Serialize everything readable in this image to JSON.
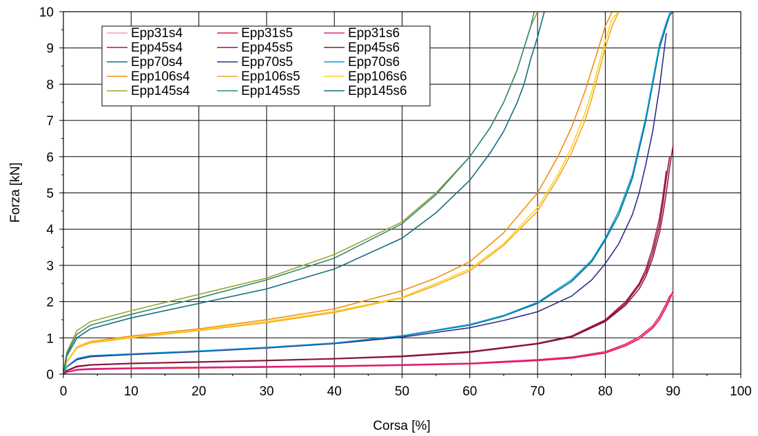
{
  "chart_data": {
    "type": "line",
    "xlabel": "Corsa [%]",
    "ylabel": "Forza [kN]",
    "xlim": [
      0,
      100
    ],
    "ylim": [
      0,
      10
    ],
    "xticks": [
      0,
      10,
      20,
      30,
      40,
      50,
      60,
      70,
      80,
      90,
      100
    ],
    "yticks": [
      0,
      1,
      2,
      3,
      4,
      5,
      6,
      7,
      8,
      9,
      10
    ],
    "x_tick_labels": [
      "0",
      "10",
      "20",
      "30",
      "40",
      "50",
      "60",
      "70",
      "80",
      "90",
      "100"
    ],
    "y_tick_labels": [
      "0",
      "1",
      "2",
      "3",
      "4",
      "5",
      "6",
      "7",
      "8",
      "9",
      "10"
    ],
    "grid": true,
    "legend_position": "top-left",
    "legend_columns": 3,
    "series": [
      {
        "name": "Epp31s4",
        "color": "#f4a3a8",
        "x": [
          0,
          0.5,
          2,
          4,
          10,
          20,
          30,
          40,
          50,
          60,
          70,
          75,
          80,
          83,
          85,
          87,
          88,
          89,
          89.5,
          90
        ],
        "y": [
          0,
          0.06,
          0.12,
          0.14,
          0.16,
          0.18,
          0.2,
          0.22,
          0.25,
          0.29,
          0.38,
          0.45,
          0.6,
          0.8,
          1.0,
          1.3,
          1.55,
          1.9,
          2.1,
          2.2
        ]
      },
      {
        "name": "Epp31s5",
        "color": "#e3173d",
        "x": [
          0,
          0.5,
          2,
          4,
          10,
          20,
          30,
          40,
          50,
          60,
          70,
          75,
          80,
          83,
          85,
          87,
          88,
          89,
          89.5,
          90
        ],
        "y": [
          0,
          0.05,
          0.11,
          0.13,
          0.15,
          0.17,
          0.19,
          0.21,
          0.24,
          0.28,
          0.37,
          0.44,
          0.58,
          0.78,
          0.97,
          1.27,
          1.5,
          1.85,
          2.05,
          2.3
        ]
      },
      {
        "name": "Epp31s6",
        "color": "#e0218a",
        "x": [
          0,
          0.5,
          2,
          4,
          10,
          20,
          30,
          40,
          50,
          60,
          70,
          75,
          80,
          83,
          85,
          87,
          88,
          89,
          89.5,
          90
        ],
        "y": [
          0,
          0.06,
          0.13,
          0.15,
          0.17,
          0.19,
          0.21,
          0.23,
          0.26,
          0.3,
          0.4,
          0.47,
          0.62,
          0.83,
          1.03,
          1.33,
          1.6,
          1.95,
          2.15,
          2.25
        ]
      },
      {
        "name": "Epp45s4",
        "color": "#b0154e",
        "x": [
          0,
          0.5,
          2,
          4,
          10,
          20,
          30,
          40,
          50,
          60,
          70,
          75,
          80,
          83,
          85,
          86,
          87,
          88,
          88.5,
          89
        ],
        "y": [
          0,
          0.1,
          0.22,
          0.26,
          0.3,
          0.34,
          0.38,
          0.43,
          0.5,
          0.62,
          0.85,
          1.05,
          1.5,
          2.0,
          2.5,
          2.9,
          3.5,
          4.3,
          4.9,
          5.6
        ]
      },
      {
        "name": "Epp45s5",
        "color": "#a01245",
        "x": [
          0,
          0.5,
          2,
          4,
          10,
          20,
          30,
          40,
          50,
          60,
          70,
          75,
          80,
          83,
          85,
          86,
          87,
          88,
          88.5,
          89,
          89.5,
          90
        ],
        "y": [
          0,
          0.09,
          0.2,
          0.25,
          0.29,
          0.33,
          0.37,
          0.42,
          0.48,
          0.6,
          0.83,
          1.02,
          1.45,
          1.9,
          2.35,
          2.7,
          3.2,
          3.9,
          4.4,
          5.0,
          5.7,
          6.3
        ]
      },
      {
        "name": "Epp45s6",
        "color": "#7c1a3a",
        "x": [
          0,
          0.5,
          2,
          4,
          10,
          20,
          30,
          40,
          50,
          60,
          70,
          75,
          80,
          83,
          85,
          86,
          87,
          88,
          88.5,
          89,
          89.5
        ],
        "y": [
          0,
          0.1,
          0.21,
          0.25,
          0.29,
          0.33,
          0.37,
          0.42,
          0.49,
          0.61,
          0.84,
          1.03,
          1.47,
          1.95,
          2.45,
          2.8,
          3.35,
          4.1,
          4.7,
          5.4,
          6.0
        ]
      },
      {
        "name": "Epp70s4",
        "color": "#0b6e95",
        "x": [
          0,
          0.5,
          2,
          4,
          10,
          20,
          30,
          40,
          50,
          60,
          65,
          70,
          75,
          78,
          80,
          82,
          84,
          85,
          86,
          87,
          88,
          89,
          89.5,
          90
        ],
        "y": [
          0,
          0.2,
          0.42,
          0.5,
          0.55,
          0.63,
          0.73,
          0.85,
          1.05,
          1.35,
          1.6,
          1.95,
          2.55,
          3.1,
          3.7,
          4.4,
          5.4,
          6.2,
          7.0,
          8.0,
          9.0,
          9.6,
          9.9,
          10
        ]
      },
      {
        "name": "Epp70s5",
        "color": "#2a2d8c",
        "x": [
          0,
          0.5,
          2,
          4,
          10,
          20,
          30,
          40,
          50,
          60,
          65,
          70,
          75,
          78,
          80,
          82,
          84,
          85,
          86,
          87,
          88,
          89
        ],
        "y": [
          0,
          0.2,
          0.4,
          0.48,
          0.54,
          0.62,
          0.72,
          0.84,
          1.02,
          1.28,
          1.48,
          1.72,
          2.15,
          2.6,
          3.05,
          3.6,
          4.4,
          5.0,
          5.8,
          6.7,
          7.9,
          9.4
        ]
      },
      {
        "name": "Epp70s6",
        "color": "#0a9ad1",
        "x": [
          0,
          0.5,
          2,
          4,
          10,
          20,
          30,
          40,
          50,
          60,
          65,
          70,
          75,
          78,
          80,
          82,
          84,
          85,
          86,
          87,
          88,
          89,
          89.5,
          90
        ],
        "y": [
          0,
          0.21,
          0.43,
          0.51,
          0.56,
          0.64,
          0.74,
          0.86,
          1.06,
          1.37,
          1.62,
          1.98,
          2.6,
          3.15,
          3.75,
          4.5,
          5.5,
          6.3,
          7.1,
          8.1,
          9.1,
          9.7,
          9.95,
          10
        ]
      },
      {
        "name": "Epp106s4",
        "color": "#f08f0e",
        "x": [
          0,
          0.5,
          2,
          4,
          10,
          20,
          30,
          40,
          50,
          55,
          60,
          65,
          70,
          73,
          75,
          77,
          78,
          79,
          80,
          81,
          81.5
        ],
        "y": [
          0,
          0.35,
          0.75,
          0.9,
          1.05,
          1.25,
          1.5,
          1.8,
          2.3,
          2.65,
          3.1,
          3.9,
          5.0,
          6.0,
          6.8,
          7.8,
          8.4,
          9.0,
          9.6,
          10.0,
          10.0
        ]
      },
      {
        "name": "Epp106s5",
        "color": "#f5a623",
        "x": [
          0,
          0.5,
          2,
          4,
          10,
          20,
          30,
          40,
          50,
          55,
          60,
          65,
          70,
          73,
          75,
          77,
          78,
          79,
          80,
          81,
          82
        ],
        "y": [
          0,
          0.33,
          0.72,
          0.86,
          1.0,
          1.2,
          1.42,
          1.7,
          2.1,
          2.45,
          2.85,
          3.55,
          4.5,
          5.4,
          6.1,
          7.0,
          7.6,
          8.3,
          9.0,
          9.6,
          10.0
        ]
      },
      {
        "name": "Epp106s6",
        "color": "#ffd21e",
        "x": [
          0,
          0.5,
          2,
          4,
          10,
          20,
          30,
          40,
          50,
          55,
          60,
          65,
          70,
          73,
          75,
          77,
          78,
          79,
          80,
          81,
          82
        ],
        "y": [
          0,
          0.34,
          0.74,
          0.88,
          1.02,
          1.22,
          1.45,
          1.73,
          2.12,
          2.5,
          2.9,
          3.6,
          4.6,
          5.5,
          6.25,
          7.2,
          7.8,
          8.5,
          9.2,
          9.8,
          10.0
        ]
      },
      {
        "name": "Epp145s4",
        "color": "#9aa32a",
        "x": [
          0,
          0.5,
          2,
          4,
          10,
          20,
          30,
          40,
          50,
          55,
          60,
          63,
          65,
          67,
          68,
          69,
          70
        ],
        "y": [
          0,
          0.6,
          1.2,
          1.45,
          1.75,
          2.2,
          2.65,
          3.3,
          4.2,
          5.0,
          6.0,
          6.8,
          7.5,
          8.4,
          9.0,
          9.6,
          10.0
        ]
      },
      {
        "name": "Epp145s5",
        "color": "#2f8a7a",
        "x": [
          0,
          0.5,
          2,
          4,
          10,
          20,
          30,
          40,
          50,
          55,
          60,
          63,
          65,
          67,
          68,
          69,
          69.5
        ],
        "y": [
          0,
          0.55,
          1.1,
          1.35,
          1.65,
          2.1,
          2.6,
          3.2,
          4.15,
          4.95,
          6.0,
          6.8,
          7.5,
          8.4,
          9.0,
          9.6,
          10.0
        ]
      },
      {
        "name": "Epp145s6",
        "color": "#136d7d",
        "x": [
          0,
          0.5,
          2,
          4,
          10,
          20,
          30,
          40,
          50,
          55,
          60,
          63,
          65,
          67,
          68,
          69,
          70,
          71
        ],
        "y": [
          0,
          0.5,
          1.0,
          1.25,
          1.55,
          1.95,
          2.35,
          2.9,
          3.75,
          4.45,
          5.35,
          6.1,
          6.7,
          7.5,
          8.0,
          8.7,
          9.3,
          10.0
        ]
      }
    ]
  }
}
